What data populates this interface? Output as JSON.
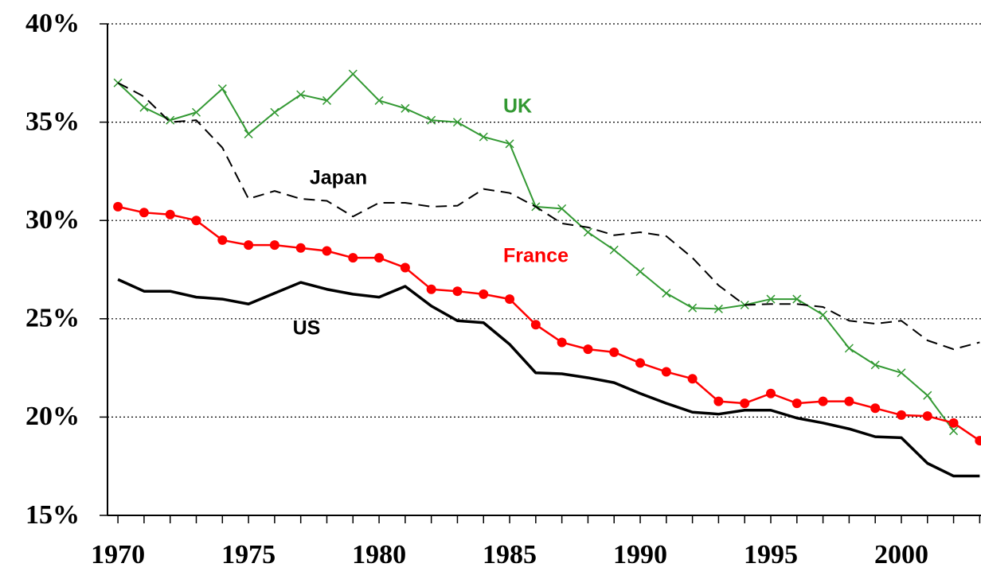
{
  "chart_data": {
    "type": "line",
    "x": [
      1970,
      1971,
      1972,
      1973,
      1974,
      1975,
      1976,
      1977,
      1978,
      1979,
      1980,
      1981,
      1982,
      1983,
      1984,
      1985,
      1986,
      1987,
      1988,
      1989,
      1990,
      1991,
      1992,
      1993,
      1994,
      1995,
      1996,
      1997,
      1998,
      1999,
      2000,
      2001,
      2002,
      2003
    ],
    "series": [
      {
        "name": "UK",
        "color": "#339933",
        "style": "solid",
        "marker": "x",
        "linewidth": 2,
        "values": [
          37.0,
          35.75,
          35.1,
          35.5,
          36.7,
          34.4,
          35.5,
          36.4,
          36.1,
          37.45,
          36.1,
          35.7,
          35.1,
          35.0,
          34.25,
          33.9,
          30.7,
          30.6,
          29.4,
          28.5,
          27.4,
          26.3,
          25.55,
          25.5,
          25.7,
          26.0,
          26.0,
          25.2,
          23.5,
          22.65,
          22.25,
          21.1,
          19.3,
          null
        ]
      },
      {
        "name": "Japan",
        "color": "#000000",
        "style": "dashed",
        "marker": "none",
        "linewidth": 2,
        "values": [
          37.0,
          36.3,
          35.0,
          35.1,
          33.7,
          31.1,
          31.5,
          31.1,
          31.0,
          30.2,
          30.9,
          30.9,
          30.7,
          30.75,
          31.6,
          31.4,
          30.7,
          29.85,
          29.65,
          29.25,
          29.4,
          29.2,
          28.1,
          26.7,
          25.7,
          25.75,
          25.75,
          25.6,
          24.9,
          24.75,
          24.9,
          23.9,
          23.45,
          23.8
        ]
      },
      {
        "name": "France",
        "color": "#ff0000",
        "style": "solid",
        "marker": "circle",
        "linewidth": 2.5,
        "values": [
          30.7,
          30.4,
          30.3,
          30.0,
          29.0,
          28.75,
          28.75,
          28.6,
          28.45,
          28.1,
          28.1,
          27.6,
          26.5,
          26.4,
          26.25,
          26.0,
          24.7,
          23.8,
          23.45,
          23.3,
          22.75,
          22.3,
          21.95,
          20.8,
          20.7,
          21.2,
          20.7,
          20.8,
          20.8,
          20.45,
          20.1,
          20.05,
          19.7,
          18.8
        ]
      },
      {
        "name": "US",
        "color": "#000000",
        "style": "solid",
        "marker": "none",
        "linewidth": 3.5,
        "values": [
          27.0,
          26.4,
          26.4,
          26.1,
          26.0,
          25.75,
          26.3,
          26.85,
          26.5,
          26.25,
          26.1,
          26.65,
          25.65,
          24.9,
          24.8,
          23.7,
          22.25,
          22.2,
          22.0,
          21.75,
          21.2,
          20.7,
          20.25,
          20.15,
          20.35,
          20.35,
          19.95,
          19.7,
          19.4,
          19.0,
          18.95,
          17.65,
          17.0,
          17.0
        ]
      }
    ],
    "xlim": [
      1969.6,
      2003.05
    ],
    "xticks": [
      1970,
      1975,
      1980,
      1985,
      1990,
      1995,
      2000
    ],
    "xminorticks": [
      1970,
      1971,
      1972,
      1973,
      1974,
      1975,
      1976,
      1977,
      1978,
      1979,
      1980,
      1981,
      1982,
      1983,
      1984,
      1985,
      1986,
      1987,
      1988,
      1989,
      1990,
      1991,
      1992,
      1993,
      1994,
      1995,
      1996,
      1997,
      1998,
      1999,
      2000,
      2001,
      2002,
      2003
    ],
    "ylim": [
      15,
      40
    ],
    "yticks": [
      {
        "value": 15,
        "label": "15%"
      },
      {
        "value": 20,
        "label": "20%"
      },
      {
        "value": 25,
        "label": "25%"
      },
      {
        "value": 30,
        "label": "30%"
      },
      {
        "value": 35,
        "label": "35%"
      },
      {
        "value": 40,
        "label": "40%"
      }
    ],
    "grid": true
  }
}
